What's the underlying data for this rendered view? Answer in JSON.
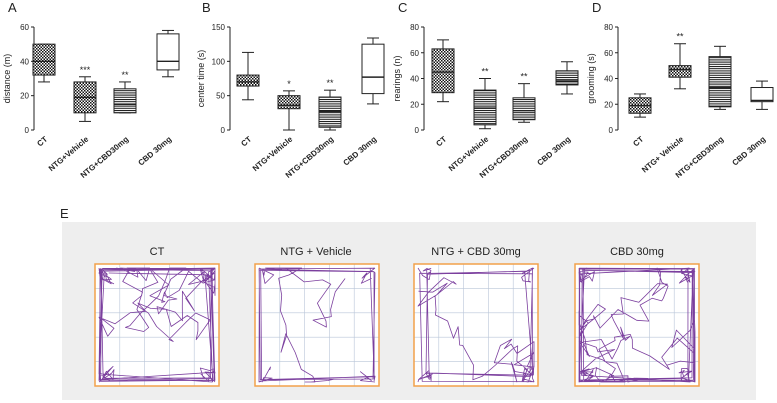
{
  "chart_data": [
    {
      "panel": "A",
      "type": "box",
      "ylabel": "distance (m)",
      "ylim": [
        0,
        60
      ],
      "yticks": [
        0,
        20,
        40,
        60
      ],
      "categories": [
        "CT",
        "NTG+Vehicle",
        "NTG+CBD30mg",
        "CBD 30mg"
      ],
      "boxes": [
        {
          "min": 28,
          "q1": 32,
          "median": 40,
          "q3": 50,
          "max": 50,
          "sig": ""
        },
        {
          "min": 5,
          "q1": 10,
          "median": 19,
          "q3": 28,
          "max": 31,
          "sig": "***"
        },
        {
          "min": 10,
          "q1": 10,
          "median": 15,
          "q3": 24,
          "max": 28,
          "sig": "**"
        },
        {
          "min": 31,
          "q1": 35,
          "median": 40,
          "q3": 56,
          "max": 58,
          "sig": ""
        }
      ],
      "patterns": [
        "checker",
        "checker",
        "hlines",
        "white"
      ]
    },
    {
      "panel": "B",
      "type": "box",
      "ylabel": "center time (s)",
      "ylim": [
        0,
        150
      ],
      "yticks": [
        0,
        50,
        100,
        150
      ],
      "categories": [
        "CT",
        "NTG+Vehicle",
        "NTG+CBD30mg",
        "CBD 30mg"
      ],
      "boxes": [
        {
          "min": 44,
          "q1": 64,
          "median": 70,
          "q3": 80,
          "max": 113,
          "sig": ""
        },
        {
          "min": 0,
          "q1": 31,
          "median": 36,
          "q3": 50,
          "max": 57,
          "sig": "*"
        },
        {
          "min": 0,
          "q1": 4,
          "median": 27,
          "q3": 48,
          "max": 58,
          "sig": "**"
        },
        {
          "min": 38,
          "q1": 53,
          "median": 77,
          "q3": 125,
          "max": 134,
          "sig": ""
        }
      ],
      "patterns": [
        "checker",
        "checker",
        "hlines",
        "white"
      ]
    },
    {
      "panel": "C",
      "type": "box",
      "ylabel": "rearings (n)",
      "ylim": [
        0,
        80
      ],
      "yticks": [
        0,
        20,
        40,
        60,
        80
      ],
      "categories": [
        "CT",
        "NTG+Vehicle",
        "NTG+CBD30mg",
        "CBD 30mg"
      ],
      "boxes": [
        {
          "min": 22,
          "q1": 29,
          "median": 45,
          "q3": 63,
          "max": 70,
          "sig": ""
        },
        {
          "min": 1,
          "q1": 4,
          "median": 17,
          "q3": 31,
          "max": 40,
          "sig": "**"
        },
        {
          "min": 6,
          "q1": 8,
          "median": 15,
          "q3": 25,
          "max": 36,
          "sig": "**"
        },
        {
          "min": 28,
          "q1": 35,
          "median": 38,
          "q3": 46,
          "max": 53,
          "sig": ""
        }
      ],
      "patterns": [
        "checker",
        "hlines",
        "hlines",
        "hlines"
      ]
    },
    {
      "panel": "D",
      "type": "box",
      "ylabel": "grooming (s)",
      "ylim": [
        0,
        80
      ],
      "yticks": [
        0,
        20,
        40,
        60,
        80
      ],
      "categories": [
        "CT",
        "NTG+ Vehicle",
        "NTG+CBD30mg",
        "CBD 30mg"
      ],
      "boxes": [
        {
          "min": 10,
          "q1": 13,
          "median": 19,
          "q3": 25,
          "max": 28,
          "sig": ""
        },
        {
          "min": 32,
          "q1": 41,
          "median": 47,
          "q3": 50,
          "max": 67,
          "sig": "**"
        },
        {
          "min": 16,
          "q1": 18,
          "median": 33,
          "q3": 57,
          "max": 65,
          "sig": ""
        },
        {
          "min": 16,
          "q1": 22,
          "median": 23,
          "q3": 33,
          "max": 38,
          "sig": ""
        }
      ],
      "patterns": [
        "checker",
        "checker",
        "hlines",
        "white"
      ]
    }
  ],
  "panel_e": {
    "label": "E",
    "titles": [
      "CT",
      "NTG + Vehicle",
      "NTG + CBD 30mg",
      "CBD 30mg"
    ],
    "activity": [
      1.0,
      0.45,
      0.55,
      1.2
    ],
    "colors": {
      "track": "#7b3f9e",
      "border": "#f2a14a",
      "background": "#eeeeee",
      "grid": "#b9c6d8"
    }
  }
}
